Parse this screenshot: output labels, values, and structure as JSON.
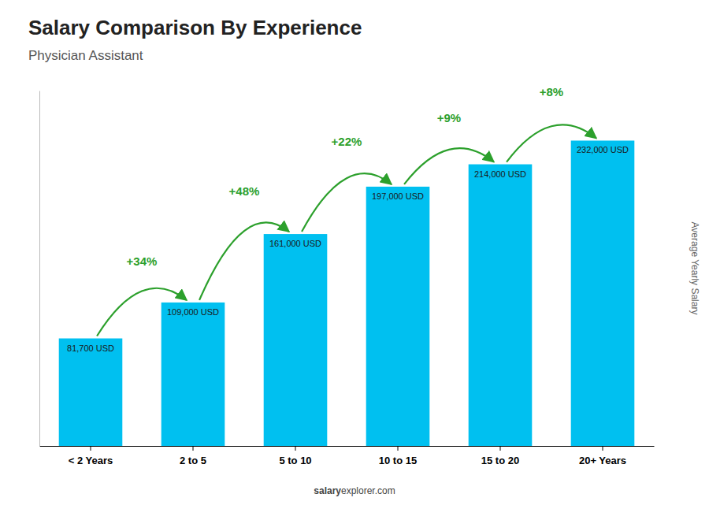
{
  "chart_data": {
    "type": "bar",
    "title": "Salary Comparison By Experience",
    "subtitle": "Physician Assistant",
    "ylabel": "Average Yearly Salary",
    "categories": [
      "< 2 Years",
      "2 to 5",
      "5 to 10",
      "10 to 15",
      "15 to 20",
      "20+ Years"
    ],
    "values": [
      81700,
      109000,
      161000,
      197000,
      214000,
      232000
    ],
    "value_labels": [
      "81,700 USD",
      "109,000 USD",
      "161,000 USD",
      "197,000 USD",
      "214,000 USD",
      "232,000 USD"
    ],
    "data_labels": true,
    "color": "#00C0F0",
    "ylim": [
      0,
      270000
    ],
    "tick_labels": "x",
    "grid": false,
    "annotations": [
      "+34%",
      "+48%",
      "+22%",
      "+9%",
      "+8%"
    ],
    "footer": [
      "salary",
      "explorer.com"
    ]
  }
}
